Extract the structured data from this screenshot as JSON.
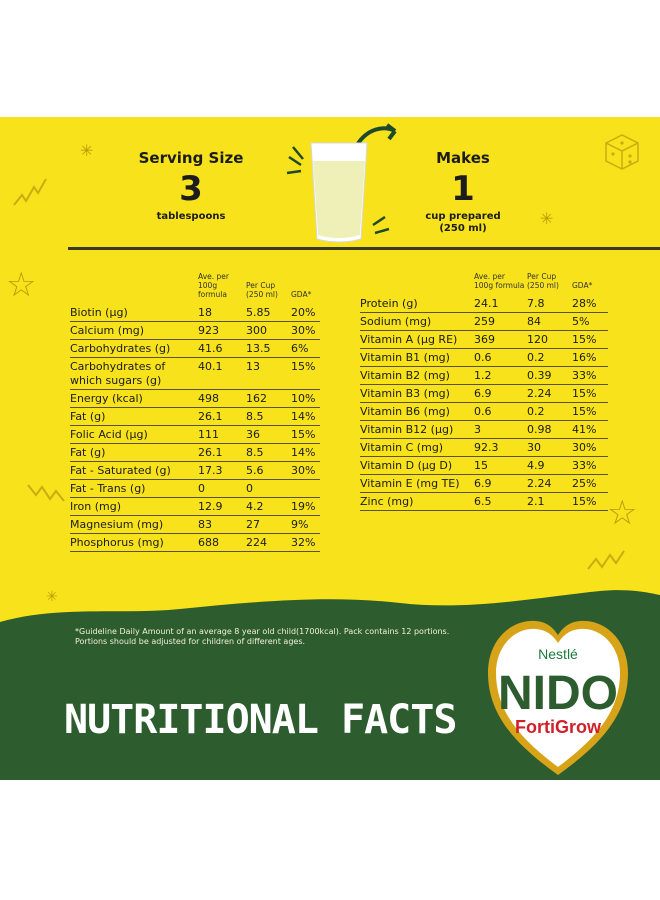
{
  "serving": {
    "title": "Serving Size",
    "value": "3",
    "unit": "tablespoons"
  },
  "makes": {
    "title": "Makes",
    "value": "1",
    "unit_line1": "cup prepared",
    "unit_line2": "(250 ml)"
  },
  "table_headers": {
    "col1_line1": "Ave. per",
    "col1_line2": "100g formula",
    "col2_line1": "Per Cup",
    "col2_line2": "(250 ml)",
    "col3": "GDA*"
  },
  "left_rows": [
    {
      "name": "Biotin (µg)",
      "per100": "18",
      "cup": "5.85",
      "gda": "20%"
    },
    {
      "name": "Calcium (mg)",
      "per100": "923",
      "cup": "300",
      "gda": "30%"
    },
    {
      "name": "Carbohydrates (g)",
      "per100": "41.6",
      "cup": "13.5",
      "gda": "6%"
    },
    {
      "name": "Carbohydrates of which sugars (g)",
      "per100": "40.1",
      "cup": "13",
      "gda": "15%"
    },
    {
      "name": "Energy (kcal)",
      "per100": "498",
      "cup": "162",
      "gda": "10%"
    },
    {
      "name": "Fat (g)",
      "per100": "26.1",
      "cup": "8.5",
      "gda": "14%"
    },
    {
      "name": "Folic Acid (µg)",
      "per100": "111",
      "cup": "36",
      "gda": "15%"
    },
    {
      "name": "Fat (g)",
      "per100": "26.1",
      "cup": "8.5",
      "gda": "14%"
    },
    {
      "name": "Fat - Saturated (g)",
      "per100": "17.3",
      "cup": "5.6",
      "gda": "30%"
    },
    {
      "name": "Fat - Trans (g)",
      "per100": "0",
      "cup": "0",
      "gda": ""
    },
    {
      "name": "Iron (mg)",
      "per100": "12.9",
      "cup": "4.2",
      "gda": "19%"
    },
    {
      "name": "Magnesium (mg)",
      "per100": "83",
      "cup": "27",
      "gda": "9%"
    },
    {
      "name": "Phosphorus (mg)",
      "per100": "688",
      "cup": "224",
      "gda": "32%"
    }
  ],
  "right_rows": [
    {
      "name": "Protein (g)",
      "per100": "24.1",
      "cup": "7.8",
      "gda": "28%"
    },
    {
      "name": "Sodium (mg)",
      "per100": "259",
      "cup": "84",
      "gda": "5%"
    },
    {
      "name": "Vitamin A (µg RE)",
      "per100": "369",
      "cup": "120",
      "gda": "15%"
    },
    {
      "name": "Vitamin B1 (mg)",
      "per100": "0.6",
      "cup": "0.2",
      "gda": "16%"
    },
    {
      "name": "Vitamin B2 (mg)",
      "per100": "1.2",
      "cup": "0.39",
      "gda": "33%"
    },
    {
      "name": "Vitamin B3 (mg)",
      "per100": "6.9",
      "cup": "2.24",
      "gda": "15%"
    },
    {
      "name": "Vitamin B6 (mg)",
      "per100": "0.6",
      "cup": "0.2",
      "gda": "15%"
    },
    {
      "name": "Vitamin B12 (µg)",
      "per100": "3",
      "cup": "0.98",
      "gda": "41%"
    },
    {
      "name": "Vitamin C (mg)",
      "per100": "92.3",
      "cup": "30",
      "gda": "30%"
    },
    {
      "name": "Vitamin D (µg D)",
      "per100": "15",
      "cup": "4.9",
      "gda": "33%"
    },
    {
      "name": "Vitamin E (mg TE)",
      "per100": "6.9",
      "cup": "2.24",
      "gda": "25%"
    },
    {
      "name": "Zinc (mg)",
      "per100": "6.5",
      "cup": "2.1",
      "gda": "15%"
    }
  ],
  "footnote": "*Guideline Daily Amount of an average 8 year old child(1700kcal). Pack contains 12 portions. Portions should be adjusted for children of different ages.",
  "heading": "NUTRITIONAL FACTS",
  "logo": {
    "brand": "Nestlé",
    "name": "NIDO",
    "sub": "FortiGrow"
  },
  "colors": {
    "yellow": "#f7e21c",
    "green": "#2d5c2e",
    "red": "#d0202a",
    "gold": "#d6a319"
  }
}
